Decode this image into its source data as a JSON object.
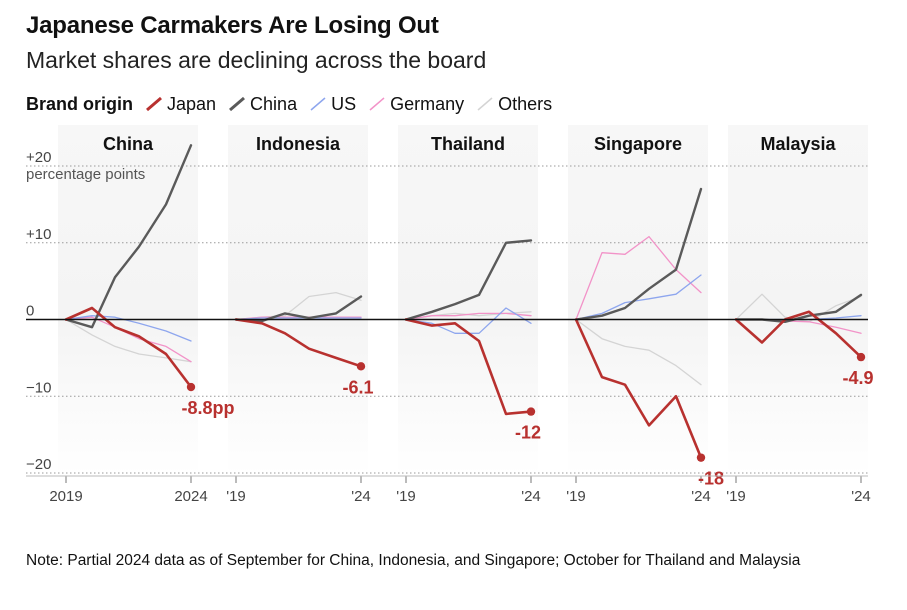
{
  "title": "Japanese Carmakers Are Losing Out",
  "subtitle": "Market shares are declining across the board",
  "legend": {
    "title": "Brand origin",
    "items": [
      {
        "label": "Japan",
        "color": "#b8312f"
      },
      {
        "label": "China",
        "color": "#5a5a5a"
      },
      {
        "label": "US",
        "color": "#8ea6ee"
      },
      {
        "label": "Germany",
        "color": "#f293c8"
      },
      {
        "label": "Others",
        "color": "#d4d4d4"
      }
    ]
  },
  "note": "Note: Partial 2024 data as of September for China, Indonesia, and Singapore; October for Thailand and Malaysia",
  "chart_data": {
    "type": "line",
    "x": [
      2019,
      2020,
      2021,
      2022,
      2023,
      2024
    ],
    "ylim": [
      -20,
      20
    ],
    "yticks": [
      {
        "value": 20,
        "label": "+20"
      },
      {
        "value": 10,
        "label": "+10"
      },
      {
        "value": 0,
        "label": "0"
      },
      {
        "value": -10,
        "label": "−10"
      },
      {
        "value": -20,
        "label": "−20"
      }
    ],
    "yunit": "percentage points",
    "grid": true,
    "panels": [
      {
        "name": "China",
        "xticks": [
          "2019",
          "2024"
        ],
        "end_label": "-8.8pp",
        "series": [
          {
            "name": "Others",
            "values": [
              0,
              -2,
              -3.5,
              -4.5,
              -5,
              -5.5
            ]
          },
          {
            "name": "Germany",
            "values": [
              0,
              0.3,
              -1,
              -2.5,
              -3.5,
              -5.5
            ]
          },
          {
            "name": "US",
            "values": [
              0,
              0.5,
              0.3,
              -0.5,
              -1.5,
              -2.8
            ]
          },
          {
            "name": "China",
            "values": [
              0,
              -1,
              5.5,
              9.5,
              15,
              22.7
            ]
          },
          {
            "name": "Japan",
            "values": [
              0,
              1.5,
              -1,
              -2.2,
              -4.5,
              -8.8
            ]
          }
        ]
      },
      {
        "name": "Indonesia",
        "xticks": [
          "'19",
          "'24"
        ],
        "end_label": "-6.1",
        "series": [
          {
            "name": "Others",
            "values": [
              0,
              0.3,
              0.5,
              3,
              3.5,
              2.5
            ]
          },
          {
            "name": "Germany",
            "values": [
              0,
              0.3,
              0.3,
              0.3,
              0.3,
              0.3
            ]
          },
          {
            "name": "US",
            "values": [
              0,
              0.2,
              0.2,
              0.2,
              0.2,
              0.2
            ]
          },
          {
            "name": "China",
            "values": [
              0,
              -0.2,
              0.8,
              0.2,
              0.8,
              3
            ]
          },
          {
            "name": "Japan",
            "values": [
              0,
              -0.5,
              -1.8,
              -3.8,
              -5,
              -6.1
            ]
          }
        ]
      },
      {
        "name": "Thailand",
        "xticks": [
          "'19",
          "'24"
        ],
        "end_label": "-12",
        "series": [
          {
            "name": "Others",
            "values": [
              0,
              0.5,
              0.8,
              0.5,
              0.8,
              1
            ]
          },
          {
            "name": "Germany",
            "values": [
              0,
              0.5,
              0.5,
              0.8,
              0.8,
              0.5
            ]
          },
          {
            "name": "US",
            "values": [
              0,
              -0.5,
              -1.8,
              -1.8,
              1.5,
              -0.5
            ]
          },
          {
            "name": "China",
            "values": [
              0,
              1,
              2,
              3.2,
              10,
              10.3
            ]
          },
          {
            "name": "Japan",
            "values": [
              0,
              -0.8,
              -0.5,
              -2.8,
              -12.3,
              -12
            ]
          }
        ]
      },
      {
        "name": "Singapore",
        "xticks": [
          "'19",
          "'24"
        ],
        "end_label": "-18",
        "series": [
          {
            "name": "Others",
            "values": [
              0,
              -2.5,
              -3.5,
              -4,
              -6,
              -8.5
            ]
          },
          {
            "name": "Germany",
            "values": [
              0,
              8.7,
              8.5,
              10.8,
              6.5,
              3.5
            ]
          },
          {
            "name": "US",
            "values": [
              0,
              0.8,
              2.2,
              2.7,
              3.3,
              5.8
            ]
          },
          {
            "name": "China",
            "values": [
              0,
              0.5,
              1.5,
              4,
              6.5,
              17
            ]
          },
          {
            "name": "Japan",
            "values": [
              0,
              -7.5,
              -8.5,
              -13.8,
              -10,
              -18
            ]
          }
        ]
      },
      {
        "name": "Malaysia",
        "xticks": [
          "'19",
          "'24"
        ],
        "end_label": "-4.9",
        "series": [
          {
            "name": "Others",
            "values": [
              0,
              3.3,
              0.3,
              -0.3,
              1.8,
              3
            ]
          },
          {
            "name": "Germany",
            "values": [
              0,
              0,
              -0.2,
              -0.3,
              -1,
              -1.8
            ]
          },
          {
            "name": "US",
            "values": [
              0,
              0,
              0,
              0,
              0.2,
              0.5
            ]
          },
          {
            "name": "China",
            "values": [
              0,
              0,
              -0.3,
              0.5,
              1,
              3.2
            ]
          },
          {
            "name": "Japan",
            "values": [
              0,
              -3,
              0,
              1,
              -1.8,
              -4.9
            ]
          }
        ]
      }
    ]
  }
}
